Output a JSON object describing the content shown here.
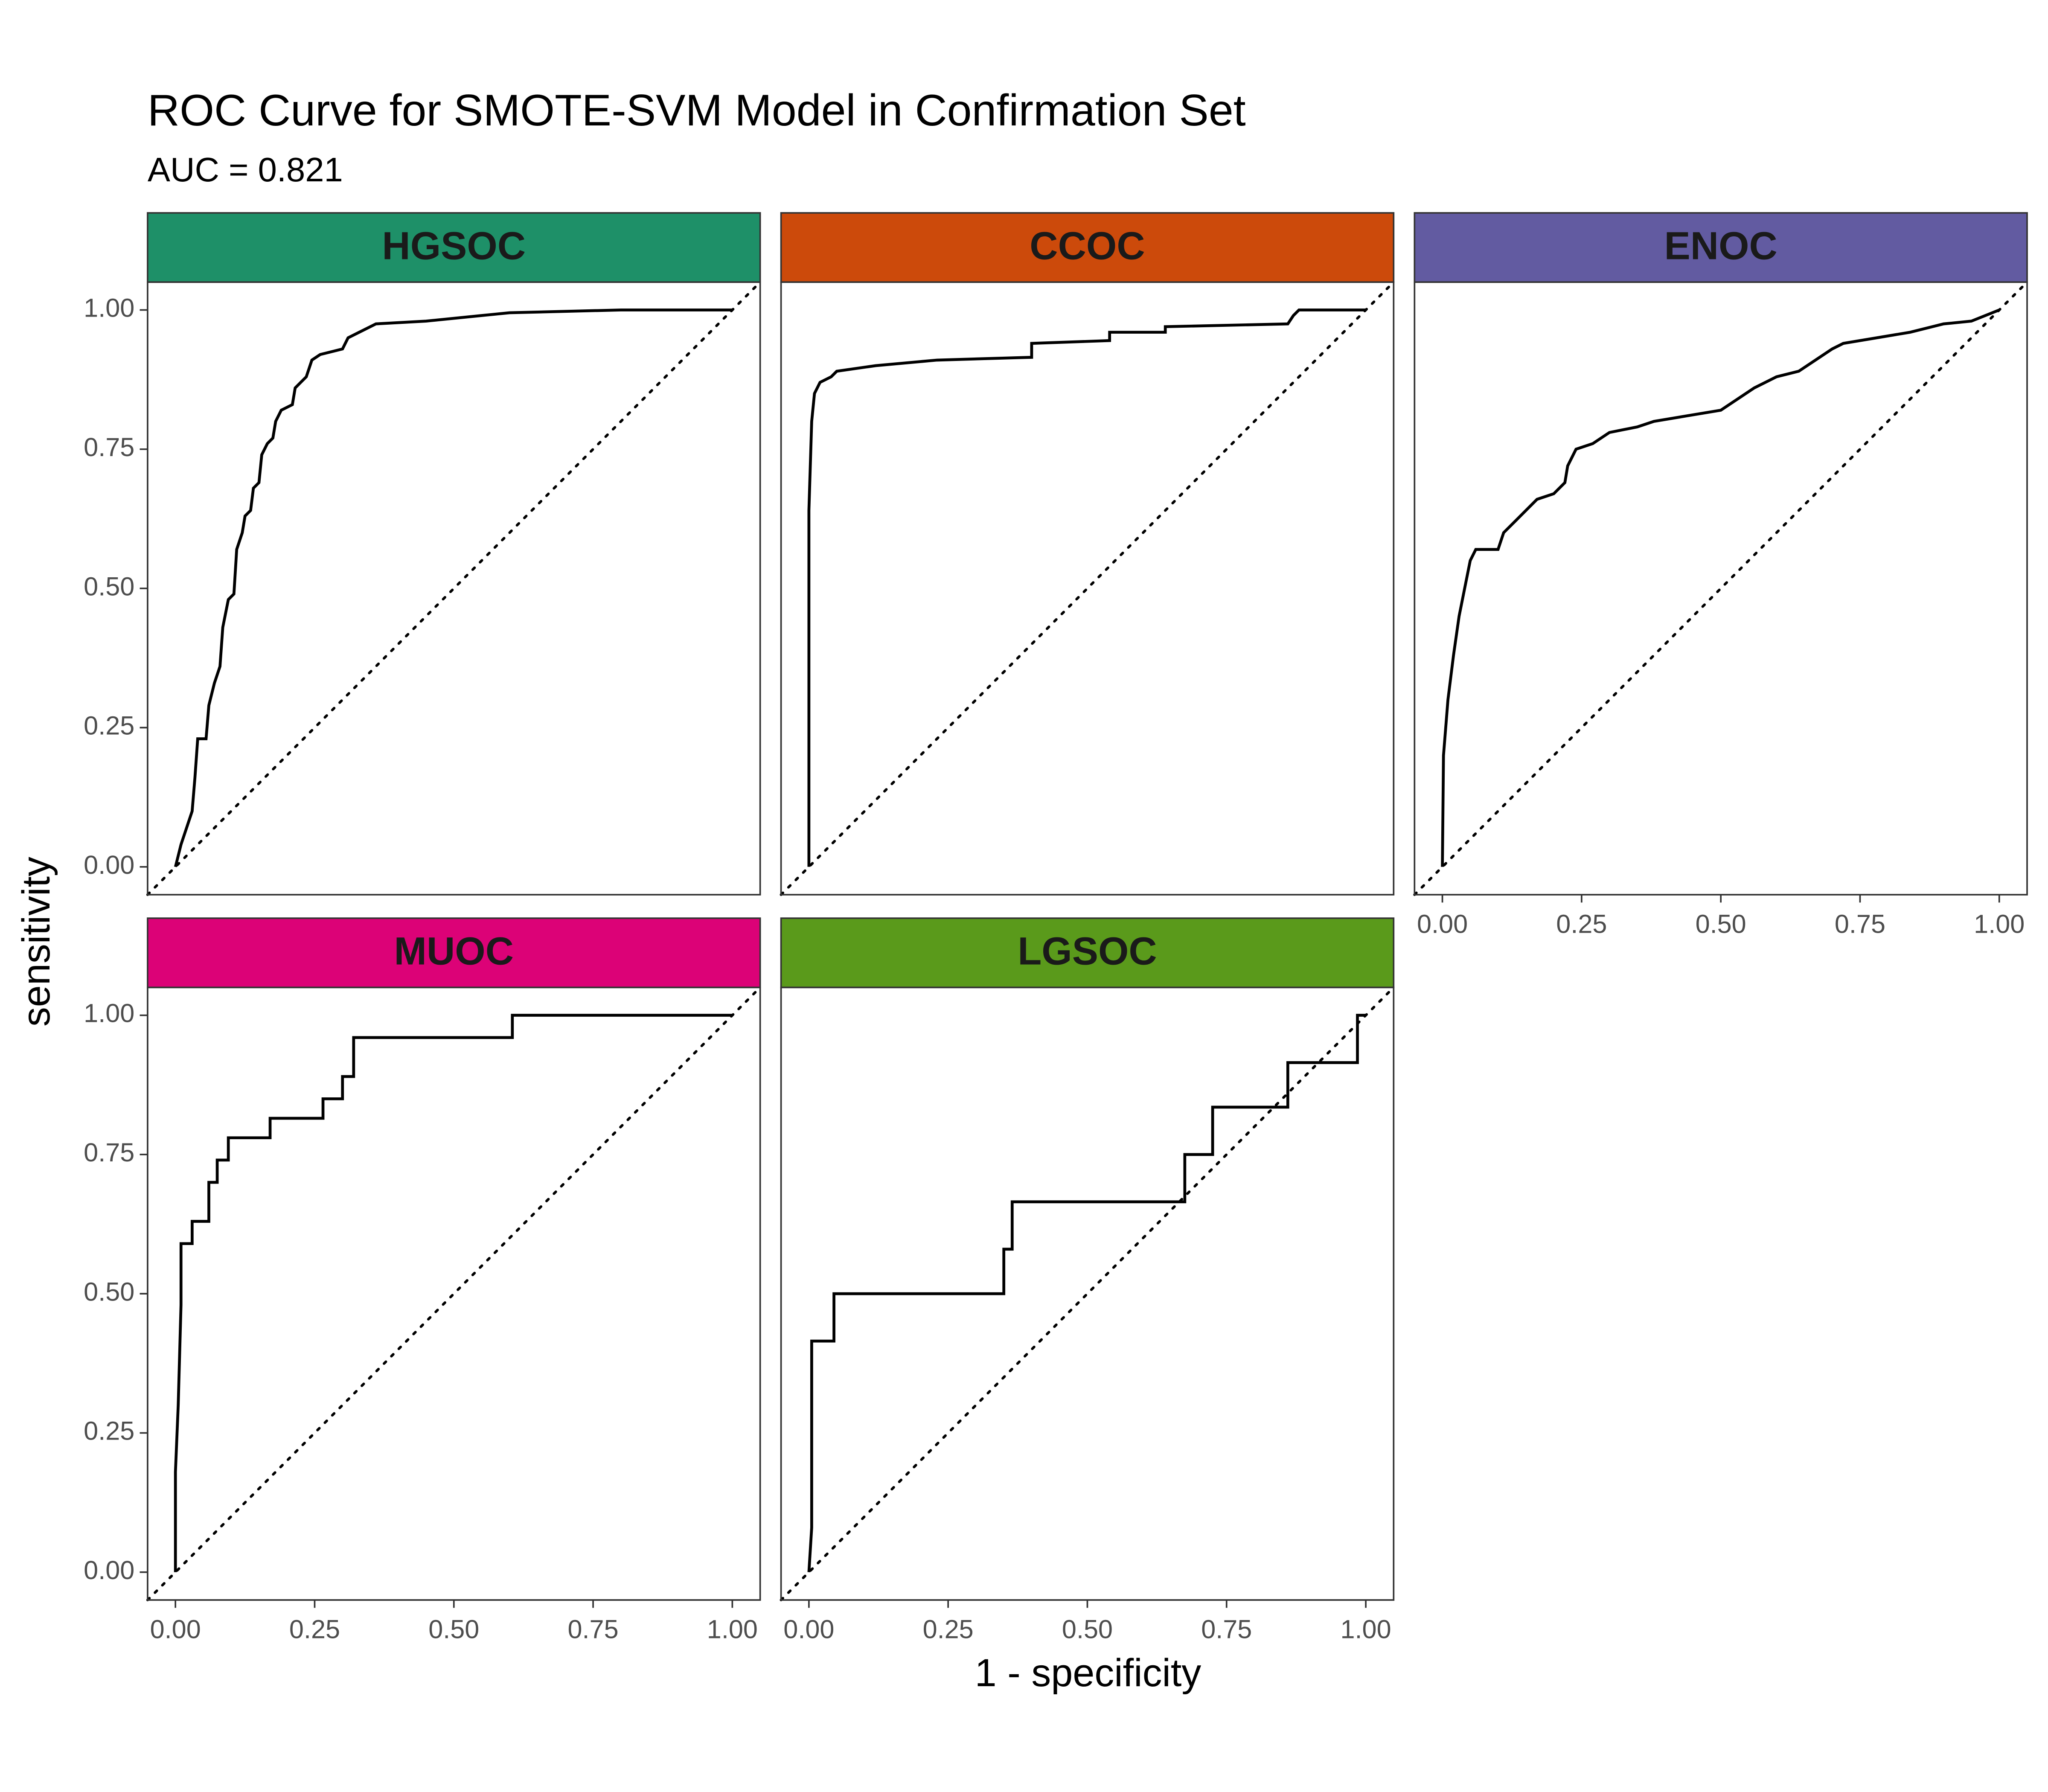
{
  "chart_data": {
    "type": "line",
    "title": "ROC Curve for SMOTE-SVM Model in Confirmation Set",
    "subtitle": "AUC = 0.821",
    "xlabel": "1 - specificity",
    "ylabel": "sensitivity",
    "xlim": [
      -0.05,
      1.05
    ],
    "ylim": [
      -0.05,
      1.05
    ],
    "xticks": [
      {
        "value": 0,
        "label": "0.00"
      },
      {
        "value": 0.25,
        "label": "0.25"
      },
      {
        "value": 0.5,
        "label": "0.50"
      },
      {
        "value": 0.75,
        "label": "0.75"
      },
      {
        "value": 1,
        "label": "1.00"
      }
    ],
    "yticks": [
      {
        "value": 0,
        "label": "0.00"
      },
      {
        "value": 0.25,
        "label": "0.25"
      },
      {
        "value": 0.5,
        "label": "0.50"
      },
      {
        "value": 0.75,
        "label": "0.75"
      },
      {
        "value": 1,
        "label": "1.00"
      }
    ],
    "line_color": "#000000",
    "panels": [
      {
        "name": "HGSOC",
        "color": "#1e9068",
        "x": [
          0,
          0.005,
          0.01,
          0.02,
          0.03,
          0.035,
          0.04,
          0.055,
          0.06,
          0.07,
          0.08,
          0.085,
          0.095,
          0.105,
          0.11,
          0.12,
          0.125,
          0.135,
          0.14,
          0.15,
          0.155,
          0.165,
          0.175,
          0.18,
          0.19,
          0.21,
          0.215,
          0.225,
          0.235,
          0.245,
          0.26,
          0.3,
          0.31,
          0.33,
          0.36,
          0.45,
          0.55,
          0.6,
          0.8,
          1
        ],
        "y": [
          0,
          0.02,
          0.04,
          0.07,
          0.1,
          0.16,
          0.23,
          0.23,
          0.29,
          0.33,
          0.36,
          0.43,
          0.48,
          0.49,
          0.57,
          0.6,
          0.63,
          0.64,
          0.68,
          0.69,
          0.74,
          0.76,
          0.77,
          0.8,
          0.82,
          0.83,
          0.86,
          0.87,
          0.88,
          0.91,
          0.92,
          0.93,
          0.95,
          0.96,
          0.975,
          0.98,
          0.99,
          0.995,
          1,
          1
        ]
      },
      {
        "name": "CCOC",
        "color": "#cc4a0b",
        "x": [
          0,
          0,
          0.005,
          0.01,
          0.02,
          0.04,
          0.05,
          0.12,
          0.23,
          0.4,
          0.4,
          0.54,
          0.54,
          0.64,
          0.64,
          0.86,
          0.87,
          0.88,
          1
        ],
        "y": [
          0,
          0.64,
          0.8,
          0.85,
          0.87,
          0.88,
          0.89,
          0.9,
          0.91,
          0.915,
          0.94,
          0.945,
          0.96,
          0.96,
          0.97,
          0.975,
          0.99,
          1,
          1
        ]
      },
      {
        "name": "ENOC",
        "color": "#625ba1",
        "x": [
          0,
          0.002,
          0.01,
          0.02,
          0.03,
          0.04,
          0.05,
          0.06,
          0.1,
          0.11,
          0.13,
          0.15,
          0.17,
          0.2,
          0.22,
          0.225,
          0.24,
          0.27,
          0.3,
          0.35,
          0.38,
          0.44,
          0.5,
          0.53,
          0.56,
          0.6,
          0.64,
          0.67,
          0.7,
          0.72,
          0.78,
          0.84,
          0.9,
          0.95,
          1
        ],
        "y": [
          0,
          0.2,
          0.3,
          0.38,
          0.45,
          0.5,
          0.55,
          0.57,
          0.57,
          0.6,
          0.62,
          0.64,
          0.66,
          0.67,
          0.69,
          0.72,
          0.75,
          0.76,
          0.78,
          0.79,
          0.8,
          0.81,
          0.82,
          0.84,
          0.86,
          0.88,
          0.89,
          0.91,
          0.93,
          0.94,
          0.95,
          0.96,
          0.975,
          0.98,
          1
        ]
      },
      {
        "name": "MUOC",
        "color": "#dc0277",
        "x": [
          0,
          0,
          0.005,
          0.01,
          0.01,
          0.03,
          0.03,
          0.06,
          0.06,
          0.075,
          0.075,
          0.095,
          0.095,
          0.17,
          0.17,
          0.265,
          0.265,
          0.3,
          0.3,
          0.32,
          0.32,
          0.605,
          0.605,
          1
        ],
        "y": [
          0,
          0.18,
          0.3,
          0.48,
          0.59,
          0.59,
          0.63,
          0.63,
          0.7,
          0.7,
          0.74,
          0.74,
          0.78,
          0.78,
          0.815,
          0.815,
          0.85,
          0.85,
          0.89,
          0.89,
          0.96,
          0.96,
          1,
          1
        ]
      },
      {
        "name": "LGSOC",
        "color": "#5a9a1b",
        "x": [
          0,
          0.005,
          0.005,
          0.045,
          0.045,
          0.35,
          0.35,
          0.365,
          0.365,
          0.675,
          0.675,
          0.725,
          0.725,
          0.86,
          0.86,
          0.985,
          0.985,
          1
        ],
        "y": [
          0,
          0.08,
          0.415,
          0.415,
          0.5,
          0.5,
          0.58,
          0.58,
          0.665,
          0.665,
          0.75,
          0.75,
          0.835,
          0.835,
          0.915,
          0.915,
          1,
          1
        ]
      }
    ]
  }
}
